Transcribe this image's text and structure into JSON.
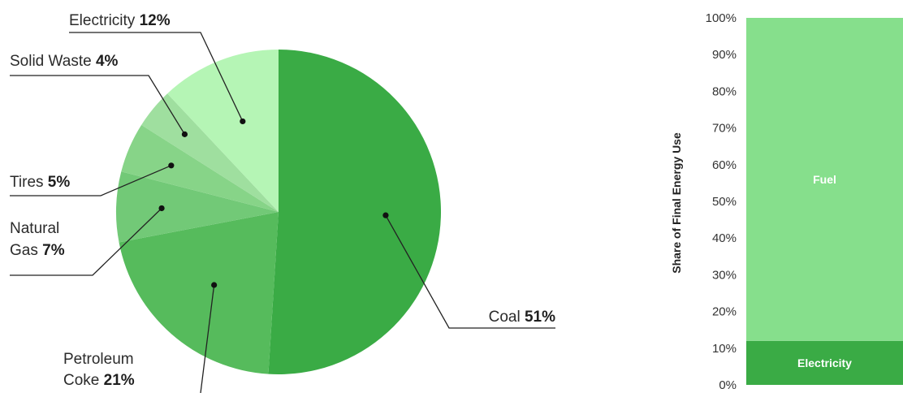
{
  "chart_data": [
    {
      "type": "pie",
      "slices": [
        {
          "label": "Coal",
          "value": 51,
          "pct_text": "51%",
          "color": "#3aab45"
        },
        {
          "label": "Petroleum Coke",
          "label_lines": [
            "Petroleum",
            "Coke"
          ],
          "value": 21,
          "pct_text": "21%",
          "color": "#56bb5c"
        },
        {
          "label": "Natural Gas",
          "label_lines": [
            "Natural",
            "Gas"
          ],
          "value": 7,
          "pct_text": "7%",
          "color": "#72c977"
        },
        {
          "label": "Tires",
          "value": 5,
          "pct_text": "5%",
          "color": "#87d488"
        },
        {
          "label": "Solid Waste",
          "value": 4,
          "pct_text": "4%",
          "color": "#9fdf9f"
        },
        {
          "label": "Electricity",
          "value": 12,
          "pct_text": "12%",
          "color": "#b5f5b5"
        }
      ]
    },
    {
      "type": "bar",
      "stacked": true,
      "ylabel": "Share of Final Energy Use",
      "ylim": [
        0,
        100
      ],
      "yticks": [
        "0%",
        "10%",
        "20%",
        "30%",
        "40%",
        "50%",
        "60%",
        "70%",
        "80%",
        "90%",
        "100%"
      ],
      "series": [
        {
          "name": "Electricity",
          "value": 12,
          "color": "#3aab45"
        },
        {
          "name": "Fuel",
          "value": 88,
          "color": "#86df8c"
        }
      ]
    }
  ]
}
